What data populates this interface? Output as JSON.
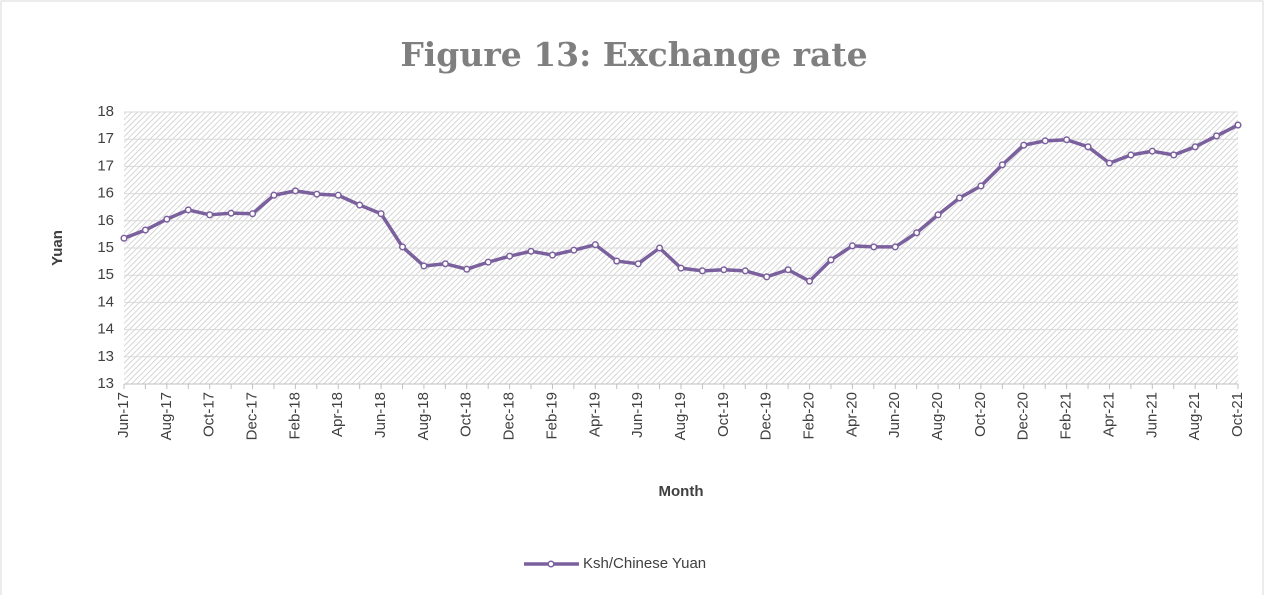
{
  "chart_data": {
    "type": "line",
    "title": "Figure 13: Exchange rate",
    "x_label": "Month",
    "y_label": "Yuan",
    "categories": [
      "Jun-17",
      null,
      "Aug-17",
      null,
      "Oct-17",
      null,
      "Dec-17",
      null,
      "Feb-18",
      null,
      "Apr-18",
      null,
      "Jun-18",
      null,
      "Aug-18",
      null,
      "Oct-18",
      null,
      "Dec-18",
      null,
      "Feb-19",
      null,
      "Apr-19",
      null,
      "Jun-19",
      null,
      "Aug-19",
      null,
      "Oct-19",
      null,
      "Dec-19",
      null,
      "Feb-20",
      null,
      "Apr-20",
      null,
      "Jun-20",
      null,
      "Aug-20",
      null,
      "Oct-20",
      null,
      "Dec-20",
      null,
      "Feb-21",
      null,
      "Apr-21",
      null,
      "Jun-21",
      null,
      "Aug-21",
      null,
      "Oct-21"
    ],
    "series": [
      {
        "name": "Ksh/Chinese Yuan",
        "color": "#7b609e",
        "values": [
          15.18,
          15.33,
          15.53,
          15.7,
          15.61,
          15.64,
          15.63,
          15.97,
          16.05,
          15.99,
          15.97,
          15.79,
          15.63,
          15.02,
          14.67,
          14.71,
          14.61,
          14.74,
          14.85,
          14.94,
          14.87,
          14.96,
          15.06,
          14.76,
          14.71,
          15.0,
          14.63,
          14.58,
          14.6,
          14.58,
          14.47,
          14.6,
          14.39,
          14.78,
          15.04,
          15.02,
          15.02,
          15.28,
          15.61,
          15.92,
          16.14,
          16.53,
          16.89,
          16.97,
          16.99,
          16.86,
          16.56,
          16.71,
          16.78,
          16.71,
          16.86,
          17.06,
          17.26
        ]
      }
    ],
    "ylim": [
      12.5,
      17.5
    ],
    "yticks": [
      {
        "value": 12.5,
        "label": "13"
      },
      {
        "value": 13,
        "label": "13"
      },
      {
        "value": 13.5,
        "label": "14"
      },
      {
        "value": 14,
        "label": "14"
      },
      {
        "value": 14.5,
        "label": "15"
      },
      {
        "value": 15,
        "label": "15"
      },
      {
        "value": 15.5,
        "label": "16"
      },
      {
        "value": 16,
        "label": "16"
      },
      {
        "value": 16.5,
        "label": "17"
      },
      {
        "value": 17,
        "label": "17"
      },
      {
        "value": 17.5,
        "label": "18"
      }
    ],
    "grid": true,
    "legend": "bottom"
  }
}
